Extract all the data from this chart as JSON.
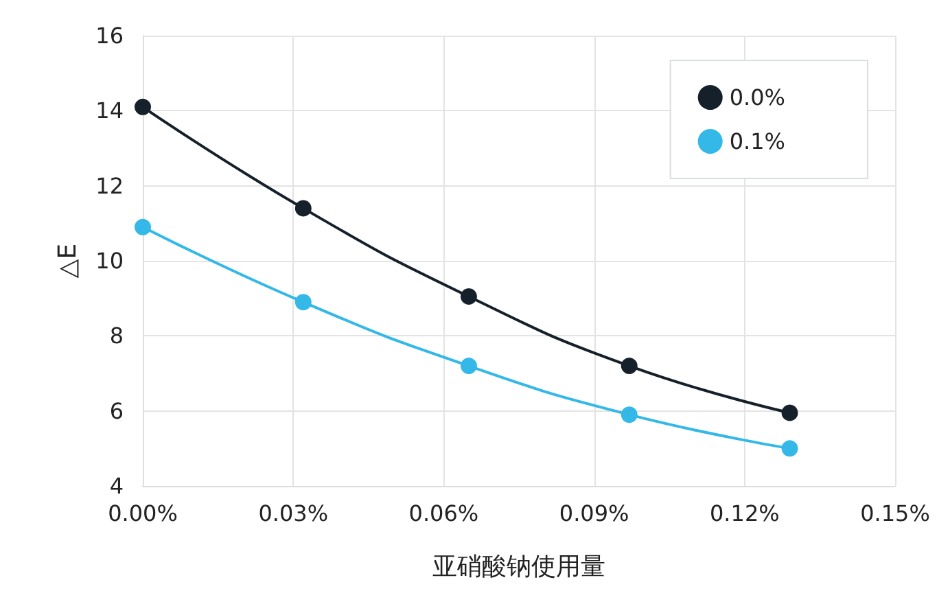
{
  "chart_data": {
    "type": "line",
    "xlabel": "亚硝酸钠使用量",
    "ylabel": "△E",
    "xlim": [
      0,
      0.15
    ],
    "xticks": [
      {
        "value": 0,
        "label": "0.00%"
      },
      {
        "value": 0.03,
        "label": "0.03%"
      },
      {
        "value": 0.06,
        "label": "0.06%"
      },
      {
        "value": 0.09,
        "label": "0.09%"
      },
      {
        "value": 0.12,
        "label": "0.12%"
      },
      {
        "value": 0.15,
        "label": "0.15%"
      }
    ],
    "ylim": [
      4,
      16
    ],
    "yticks": [
      4,
      6,
      8,
      10,
      12,
      14,
      16
    ],
    "series": [
      {
        "name": "0.0%",
        "color": "#16202b",
        "x": [
          0,
          0.032,
          0.065,
          0.097,
          0.129
        ],
        "values": [
          14.1,
          11.4,
          9.05,
          7.2,
          5.95
        ]
      },
      {
        "name": "0.1%",
        "color": "#33b8e8",
        "x": [
          0,
          0.032,
          0.065,
          0.097,
          0.129
        ],
        "values": [
          10.9,
          8.9,
          7.2,
          5.9,
          5.0
        ]
      }
    ],
    "grid": true,
    "legend": "top right",
    "marker": "circle",
    "line_style": "solid"
  }
}
